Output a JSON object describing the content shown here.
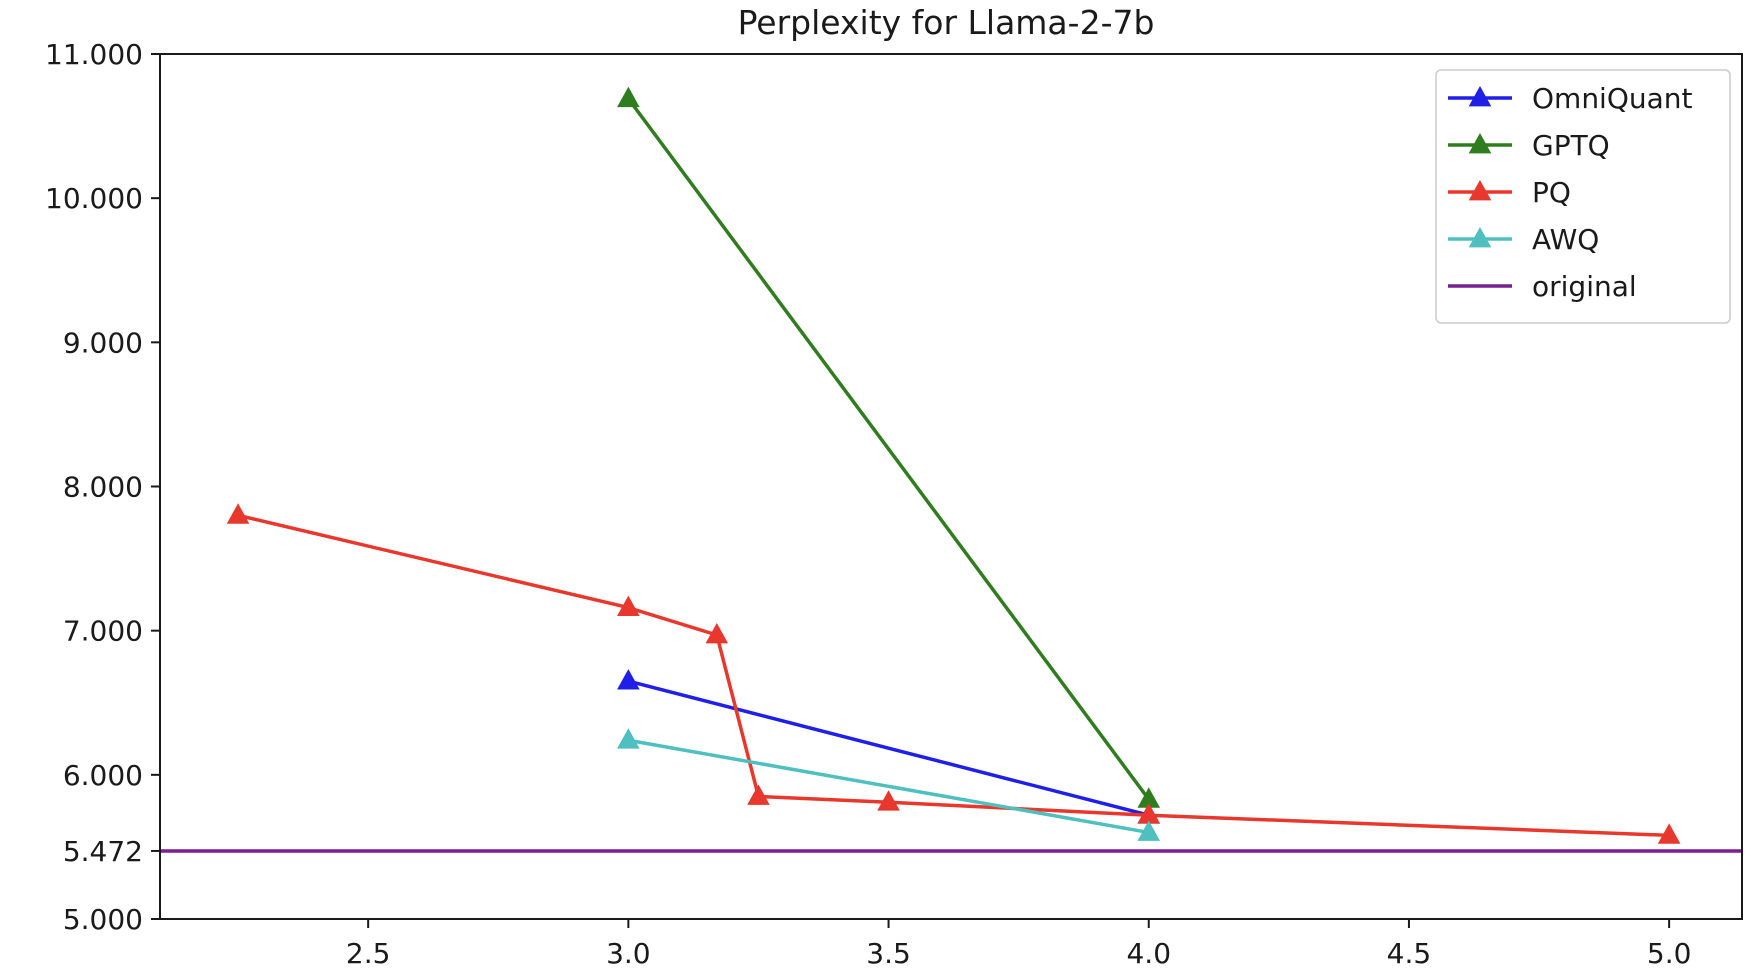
{
  "chart_data": {
    "type": "line",
    "title": "Perplexity for Llama-2-7b",
    "xlabel": "",
    "ylabel": "",
    "xlim": [
      2.1,
      5.14
    ],
    "ylim": [
      5.0,
      11.0
    ],
    "x_ticks": [
      2.5,
      3.0,
      3.5,
      4.0,
      4.5,
      5.0
    ],
    "x_tick_labels": [
      "2.5",
      "3.0",
      "3.5",
      "4.0",
      "4.5",
      "5.0"
    ],
    "y_ticks": [
      5.0,
      5.472,
      6.0,
      7.0,
      8.0,
      9.0,
      10.0,
      11.0
    ],
    "y_tick_labels": [
      "5.000",
      "5.472",
      "6.000",
      "7.000",
      "8.000",
      "9.000",
      "10.000",
      "11.000"
    ],
    "grid": false,
    "legend_position": "top-right",
    "series": [
      {
        "name": "OmniQuant",
        "color": "#1f1fe8",
        "marker": "triangle",
        "x": [
          3.0,
          4.0
        ],
        "y": [
          6.65,
          5.72
        ]
      },
      {
        "name": "GPTQ",
        "color": "#2f7d1f",
        "marker": "triangle",
        "x": [
          3.0,
          4.0
        ],
        "y": [
          10.69,
          5.83
        ]
      },
      {
        "name": "PQ",
        "color": "#e8372c",
        "marker": "triangle",
        "x": [
          2.25,
          3.0,
          3.17,
          3.25,
          3.5,
          4.0,
          5.0
        ],
        "y": [
          7.8,
          7.16,
          6.97,
          5.85,
          5.81,
          5.72,
          5.58
        ]
      },
      {
        "name": "AWQ",
        "color": "#4fbfbf",
        "marker": "triangle",
        "x": [
          3.0,
          4.0
        ],
        "y": [
          6.24,
          5.6
        ]
      }
    ],
    "reference_lines": [
      {
        "name": "original",
        "color": "#7a1f8f",
        "orientation": "horizontal",
        "y": 5.472
      }
    ]
  }
}
